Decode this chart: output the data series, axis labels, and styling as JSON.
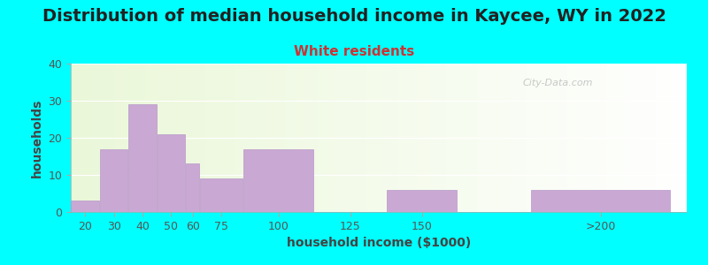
{
  "title": "Distribution of median household income in Kaycee, WY in 2022",
  "subtitle": "White residents",
  "xlabel": "household income ($1000)",
  "ylabel": "households",
  "background_outer": "#00FFFF",
  "bar_color": "#C9A8D4",
  "bar_edge_color": "#B898C8",
  "title_color": "#222222",
  "subtitle_color": "#CC3333",
  "axis_label_color": "#444444",
  "tick_label_color": "#555555",
  "grid_color": "#ffffff",
  "categories": [
    "20",
    "30",
    "40",
    "50",
    "60",
    "75",
    "100",
    "125",
    "150",
    ">200"
  ],
  "values": [
    3,
    17,
    29,
    21,
    13,
    9,
    17,
    0,
    6,
    6
  ],
  "bar_lefts": [
    15,
    25,
    35,
    45,
    55,
    60,
    75,
    100,
    125,
    175
  ],
  "bar_widths": [
    10,
    10,
    10,
    10,
    5,
    15,
    25,
    25,
    25,
    50
  ],
  "xlim": [
    15,
    230
  ],
  "ylim": [
    0,
    40
  ],
  "yticks": [
    0,
    10,
    20,
    30,
    40
  ],
  "title_fontsize": 14,
  "subtitle_fontsize": 11,
  "label_fontsize": 10,
  "tick_fontsize": 9,
  "watermark": "City-Data.com"
}
